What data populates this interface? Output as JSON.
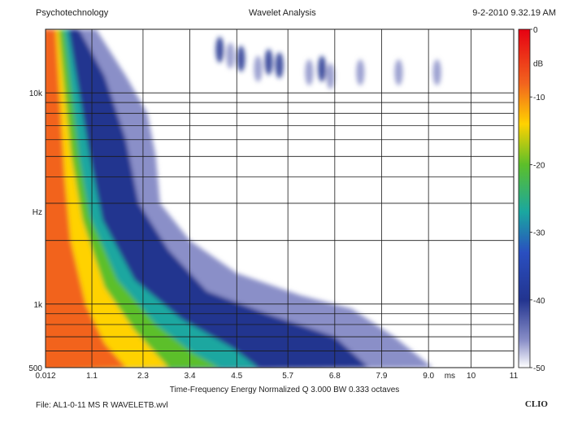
{
  "header": {
    "left": "Psychotechnology",
    "center": "Wavelet Analysis",
    "right": "9-2-2010 9.32.19 AM"
  },
  "footer": {
    "file": "File: AL1-0-11 MS R WAVELETB.wvl",
    "brand": "CLIO"
  },
  "chart_data": {
    "type": "heatmap",
    "title": "Wavelet Analysis",
    "xlabel": "Time-Frequency Energy  Normalized  Q 3.000 BW 0.333 octaves",
    "ylabel": "Hz",
    "x_unit": "ms",
    "xlim": [
      0.012,
      11
    ],
    "ylim": [
      500,
      20000
    ],
    "y_scale": "log",
    "grid": true,
    "x_ticks": [
      {
        "value": 0.012,
        "label": "0.012"
      },
      {
        "value": 1.1,
        "label": "1.1"
      },
      {
        "value": 2.3,
        "label": "2.3"
      },
      {
        "value": 3.4,
        "label": "3.4"
      },
      {
        "value": 4.5,
        "label": "4.5"
      },
      {
        "value": 5.7,
        "label": "5.7"
      },
      {
        "value": 6.8,
        "label": "6.8"
      },
      {
        "value": 7.9,
        "label": "7.9"
      },
      {
        "value": 9.0,
        "label": "9.0"
      },
      {
        "value": 10,
        "label": "10"
      },
      {
        "value": 11,
        "label": "11"
      }
    ],
    "y_ticks": [
      {
        "value": 500,
        "label": "500"
      },
      {
        "value": 1000,
        "label": "1k"
      },
      {
        "value": 10000,
        "label": "10k"
      }
    ],
    "y_grid": [
      600,
      700,
      800,
      900,
      1000,
      2000,
      3000,
      4000,
      5000,
      6000,
      7000,
      8000,
      9000,
      10000,
      20000
    ],
    "colorbar": {
      "unit": "dB",
      "min": -50,
      "max": 0,
      "ticks": [
        0,
        -10,
        -20,
        -30,
        -40,
        -50
      ],
      "tick_labels": [
        "0",
        "-10",
        "-20",
        "-30",
        "-40",
        "-50"
      ],
      "stops": [
        {
          "value": 0,
          "color": "#e60012"
        },
        {
          "value": -8,
          "color": "#f2641e"
        },
        {
          "value": -14,
          "color": "#ffd200"
        },
        {
          "value": -20,
          "color": "#5cbf2a"
        },
        {
          "value": -27,
          "color": "#1aa7a0"
        },
        {
          "value": -33,
          "color": "#2a4fc0"
        },
        {
          "value": -40,
          "color": "#22348f"
        },
        {
          "value": -46,
          "color": "#8a8fc8"
        },
        {
          "value": -50,
          "color": "#ffffff"
        }
      ]
    },
    "energy_bands": [
      {
        "db": -45,
        "edge": [
          [
            0.012,
            20000
          ],
          [
            1.2,
            20000
          ],
          [
            1.9,
            12000
          ],
          [
            2.4,
            8000
          ],
          [
            2.6,
            5000
          ],
          [
            2.7,
            3000
          ],
          [
            3.4,
            2000
          ],
          [
            4.5,
            1400
          ],
          [
            6.0,
            1100
          ],
          [
            7.2,
            950
          ],
          [
            8.2,
            700
          ],
          [
            9.1,
            500
          ]
        ]
      },
      {
        "db": -40,
        "edge": [
          [
            0.012,
            20000
          ],
          [
            0.8,
            20000
          ],
          [
            1.4,
            12000
          ],
          [
            1.9,
            6000
          ],
          [
            2.2,
            3000
          ],
          [
            2.9,
            1800
          ],
          [
            3.8,
            1150
          ],
          [
            5.2,
            900
          ],
          [
            6.8,
            700
          ],
          [
            7.6,
            500
          ]
        ]
      },
      {
        "db": -30,
        "edge": [
          [
            0.012,
            20000
          ],
          [
            0.55,
            20000
          ],
          [
            0.8,
            10000
          ],
          [
            1.05,
            5000
          ],
          [
            1.35,
            2500
          ],
          [
            2.1,
            1300
          ],
          [
            3.2,
            850
          ],
          [
            4.4,
            620
          ],
          [
            5.0,
            500
          ]
        ]
      },
      {
        "db": -20,
        "edge": [
          [
            0.012,
            20000
          ],
          [
            0.45,
            20000
          ],
          [
            0.62,
            10000
          ],
          [
            0.8,
            5000
          ],
          [
            1.05,
            2600
          ],
          [
            1.7,
            1300
          ],
          [
            2.6,
            800
          ],
          [
            3.5,
            580
          ],
          [
            4.1,
            500
          ]
        ]
      },
      {
        "db": -14,
        "edge": [
          [
            0.012,
            20000
          ],
          [
            0.32,
            20000
          ],
          [
            0.46,
            10000
          ],
          [
            0.62,
            5000
          ],
          [
            0.88,
            2500
          ],
          [
            1.4,
            1200
          ],
          [
            2.1,
            750
          ],
          [
            2.9,
            500
          ]
        ]
      },
      {
        "db": -8,
        "edge": [
          [
            0.012,
            20000
          ],
          [
            0.25,
            20000
          ],
          [
            0.34,
            10000
          ],
          [
            0.46,
            4000
          ],
          [
            0.6,
            2000
          ],
          [
            0.95,
            1000
          ],
          [
            1.4,
            650
          ],
          [
            1.9,
            500
          ]
        ]
      }
    ],
    "scattered_cells": [
      {
        "t": 4.1,
        "f": 16000,
        "db": -42
      },
      {
        "t": 4.35,
        "f": 15000,
        "db": -44
      },
      {
        "t": 4.6,
        "f": 14500,
        "db": -43
      },
      {
        "t": 5.0,
        "f": 13000,
        "db": -44
      },
      {
        "t": 5.25,
        "f": 14000,
        "db": -42
      },
      {
        "t": 5.5,
        "f": 13500,
        "db": -43
      },
      {
        "t": 6.2,
        "f": 12500,
        "db": -45
      },
      {
        "t": 6.5,
        "f": 13000,
        "db": -43
      },
      {
        "t": 6.7,
        "f": 12000,
        "db": -44
      },
      {
        "t": 7.4,
        "f": 12500,
        "db": -46
      },
      {
        "t": 8.3,
        "f": 12500,
        "db": -47
      },
      {
        "t": 9.2,
        "f": 12500,
        "db": -47
      }
    ]
  }
}
